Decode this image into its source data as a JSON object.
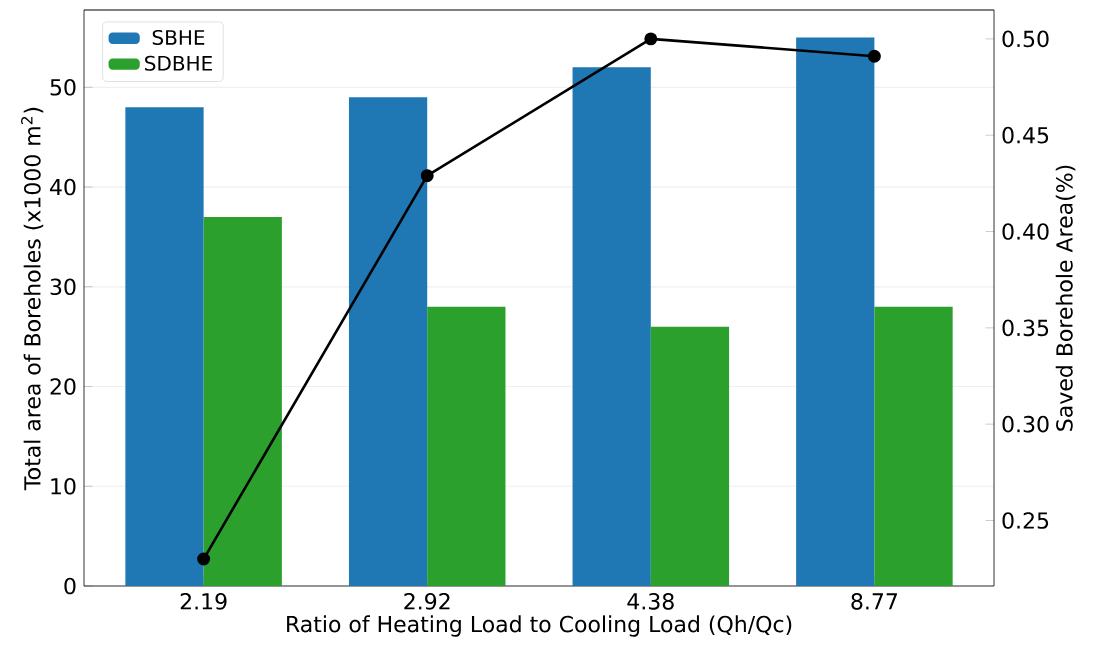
{
  "chart_data": {
    "type": "bar",
    "xlabel": "Ratio of Heating Load to Cooling Load (Qh/Qc)",
    "ylabel": "Total area of Boreholes (x1000 m$^{2}$)",
    "y2label": "Saved Borehole Area(%)",
    "categories": [
      "2.19",
      "2.92",
      "4.38",
      "8.77"
    ],
    "series": [
      {
        "name": "SBHE",
        "color": "#1f77b4",
        "values": [
          48,
          49,
          52,
          55
        ]
      },
      {
        "name": "SDBHE",
        "color": "#2ca02c",
        "values": [
          37,
          28,
          26,
          28
        ]
      },
      {
        "type": "line",
        "axis": "y2",
        "color": "#000000",
        "marker": "circle",
        "values": [
          0.23,
          0.429,
          0.5,
          0.491
        ]
      }
    ],
    "ylim": [
      0,
      57.75
    ],
    "yticks": [
      0,
      10,
      20,
      30,
      40,
      50
    ],
    "y2lim": [
      0.216,
      0.515
    ],
    "y2ticks": [
      {
        "value": 0.25,
        "label": "0.25"
      },
      {
        "value": 0.3,
        "label": "0.30"
      },
      {
        "value": 0.35,
        "label": "0.35"
      },
      {
        "value": 0.4,
        "label": "0.40"
      },
      {
        "value": 0.45,
        "label": "0.45"
      },
      {
        "value": 0.5,
        "label": "0.50"
      }
    ],
    "grid": "y",
    "legend": "top left"
  }
}
